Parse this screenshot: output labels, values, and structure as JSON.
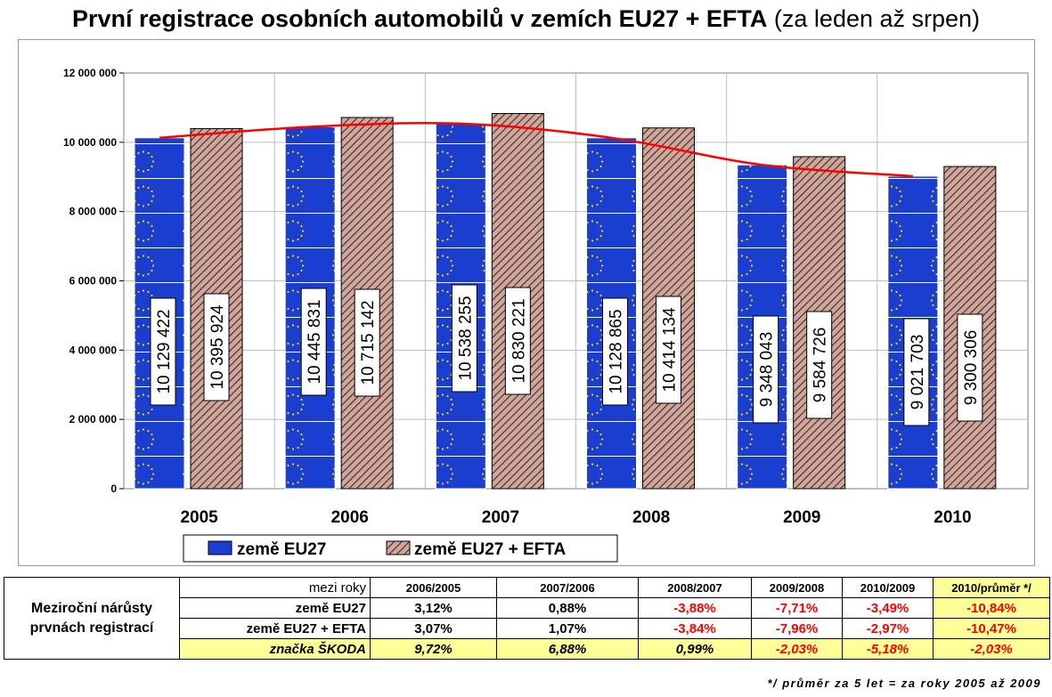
{
  "title": {
    "main": "První registrace osobních automobilů v zemích EU27 + EFTA",
    "sub": "(za leden až srpen)"
  },
  "colors": {
    "eu27_bar": "#1a3fd0",
    "eu27_star": "#ffd400",
    "efta_bar": "#c9a89f",
    "efta_hatch": "#5a1e14",
    "trend_line": "#ff0000",
    "highlight": "#ffff99",
    "negative": "#ff0000"
  },
  "chart_data": {
    "type": "bar",
    "title": "První registrace osobních automobilů v zemích EU27 + EFTA (za leden až srpen)",
    "categories": [
      "2005",
      "2006",
      "2007",
      "2008",
      "2009",
      "2010"
    ],
    "series": [
      {
        "name": "země EU27",
        "values": [
          10129422,
          10445831,
          10538255,
          10128865,
          9348043,
          9021703
        ],
        "labels": [
          "10 129 422",
          "10 445 831",
          "10 538 255",
          "10 128 865",
          "9 348 043",
          "9 021 703"
        ]
      },
      {
        "name": "země EU27 + EFTA",
        "values": [
          10395924,
          10715142,
          10830221,
          10414134,
          9584726,
          9300306
        ],
        "labels": [
          "10 395 924",
          "10 715 142",
          "10 830 221",
          "10 414 134",
          "9 584 726",
          "9 300 306"
        ]
      }
    ],
    "trend": {
      "type": "smooth-line",
      "series": "země EU27"
    },
    "ylim": [
      0,
      12000000
    ],
    "yticks": [
      0,
      2000000,
      4000000,
      6000000,
      8000000,
      10000000,
      12000000
    ],
    "ytick_labels": [
      "0",
      "2 000 000",
      "4 000 000",
      "6 000 000",
      "8 000 000",
      "10 000 000",
      "12 000 000"
    ],
    "grid": true,
    "legend": "bottom"
  },
  "table": {
    "side_label": "Meziroční nárůsty prvnách registrací",
    "header_label": "mezi roky",
    "columns": [
      "2006/2005",
      "2007/2006",
      "2008/2007",
      "2009/2008",
      "2010/2009",
      "2010/průměr */"
    ],
    "rows": [
      {
        "label": "země EU27",
        "values": [
          "3,12%",
          "0,88%",
          "-3,88%",
          "-7,71%",
          "-3,49%",
          "-10,84%"
        ]
      },
      {
        "label": "země EU27 + EFTA",
        "values": [
          "3,07%",
          "1,07%",
          "-3,84%",
          "-7,96%",
          "-2,97%",
          "-10,47%"
        ]
      },
      {
        "label": "značka ŠKODA",
        "values": [
          "9,72%",
          "6,88%",
          "0,99%",
          "-2,03%",
          "-5,18%",
          "-2,03%"
        ]
      }
    ]
  },
  "footnote": "*/ průměr za 5 let = za roky 2005 až 2009"
}
